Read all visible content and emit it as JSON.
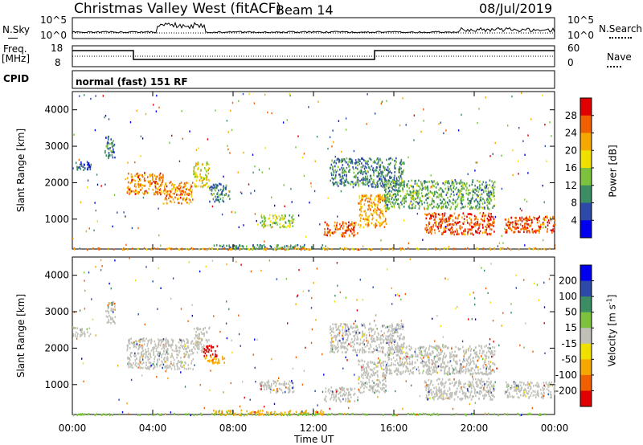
{
  "header": {
    "radar": "Christmas Valley West (fitACF)",
    "beam": "Beam 14",
    "date": "08/Jul/2019"
  },
  "top_panel": {
    "nsky_label": "N.Sky",
    "nsearch_label": "N.Search",
    "left_ticks": [
      "10^5",
      "10^0"
    ],
    "right_ticks": [
      "10^5",
      "10^0"
    ],
    "freq_label": "Freq.",
    "freq_unit": "[MHz]",
    "freq_ticks": [
      "18",
      "8"
    ],
    "nave_label": "Nave",
    "nave_ticks": [
      "60",
      "0"
    ],
    "cpid_label": "CPID",
    "cpid_text": "normal (fast) 151 RF"
  },
  "colors": {
    "power_scale": [
      "#0000ee",
      "#2d4aa8",
      "#3c8c64",
      "#7cc23c",
      "#f0e000",
      "#f5a800",
      "#f06000",
      "#e00000"
    ],
    "velocity_scale": [
      "#e00000",
      "#f06000",
      "#f5a800",
      "#f0e000",
      "#c0c0b8",
      "#7cc23c",
      "#3c8c64",
      "#2d4aa8",
      "#0000ee"
    ]
  },
  "chart_data": [
    {
      "type": "heatmap",
      "quantity": "Power",
      "ylabel": "Slant Range [km]",
      "xlabel": "",
      "x_ticks": [
        "00:00",
        "04:00",
        "08:00",
        "12:00",
        "16:00",
        "20:00",
        "00:00"
      ],
      "y_ticks": [
        1000,
        2000,
        3000,
        4000
      ],
      "ylim": [
        180,
        4500
      ],
      "xlim_hours": [
        0,
        24
      ],
      "colorbar_label": "Power [dB]",
      "colorbar_ticks": [
        "28",
        "24",
        "20",
        "16",
        "12",
        "8",
        "4"
      ],
      "colorbar_range": [
        0,
        30
      ],
      "scatter_regions": [
        {
          "t0": 0.0,
          "t1": 0.9,
          "r0": 2350,
          "r1": 2600,
          "level": 7
        },
        {
          "t0": 1.6,
          "t1": 2.1,
          "r0": 2700,
          "r1": 3300,
          "level": 8
        },
        {
          "t0": 2.7,
          "t1": 4.5,
          "r0": 1700,
          "r1": 2300,
          "level": 24
        },
        {
          "t0": 4.5,
          "t1": 6.0,
          "r0": 1450,
          "r1": 2050,
          "level": 24
        },
        {
          "t0": 6.0,
          "t1": 6.8,
          "r0": 1900,
          "r1": 2600,
          "level": 18
        },
        {
          "t0": 6.8,
          "t1": 7.8,
          "r0": 1500,
          "r1": 2000,
          "level": 9
        },
        {
          "t0": 9.3,
          "t1": 11.0,
          "r0": 800,
          "r1": 1150,
          "level": 16
        },
        {
          "t0": 12.5,
          "t1": 14.2,
          "r0": 550,
          "r1": 950,
          "level": 26
        },
        {
          "t0": 14.2,
          "t1": 15.6,
          "r0": 800,
          "r1": 1700,
          "level": 22
        },
        {
          "t0": 12.8,
          "t1": 16.5,
          "r0": 1900,
          "r1": 2700,
          "level": 9
        },
        {
          "t0": 15.5,
          "t1": 21.0,
          "r0": 1300,
          "r1": 2100,
          "level": 12
        },
        {
          "t0": 17.5,
          "t1": 21.0,
          "r0": 600,
          "r1": 1200,
          "level": 27
        },
        {
          "t0": 21.5,
          "t1": 24.0,
          "r0": 650,
          "r1": 1100,
          "level": 27
        },
        {
          "t0": 7.0,
          "t1": 12.5,
          "r0": 190,
          "r1": 320,
          "level": 10
        },
        {
          "t0": 0.0,
          "t1": 24.0,
          "r0": 185,
          "r1": 230,
          "level": 22
        }
      ]
    },
    {
      "type": "heatmap",
      "quantity": "Velocity",
      "ylabel": "Slant Range [km]",
      "xlabel": "Time UT",
      "x_ticks": [
        "00:00",
        "04:00",
        "08:00",
        "12:00",
        "16:00",
        "20:00",
        "00:00"
      ],
      "y_ticks": [
        1000,
        2000,
        3000,
        4000
      ],
      "ylim": [
        180,
        4500
      ],
      "xlim_hours": [
        0,
        24
      ],
      "colorbar_label": "Velocity [m s",
      "colorbar_exp": "-1",
      "colorbar_ticks": [
        "200",
        "100",
        "50",
        "15",
        "-15",
        "-50",
        "-100",
        "-200"
      ],
      "colorbar_range": [
        -250,
        250
      ],
      "scatter_regions": [
        {
          "t0": 0.0,
          "t1": 0.9,
          "r0": 2350,
          "r1": 2600,
          "level": 0
        },
        {
          "t0": 1.6,
          "t1": 2.1,
          "r0": 2700,
          "r1": 3300,
          "level": 0
        },
        {
          "t0": 2.7,
          "t1": 6.0,
          "r0": 1450,
          "r1": 2300,
          "level": 0
        },
        {
          "t0": 6.0,
          "t1": 6.8,
          "r0": 1900,
          "r1": 2600,
          "level": 0
        },
        {
          "t0": 6.5,
          "t1": 7.2,
          "r0": 1800,
          "r1": 2100,
          "level": -220
        },
        {
          "t0": 6.5,
          "t1": 7.6,
          "r0": 1600,
          "r1": 1800,
          "level": -60
        },
        {
          "t0": 9.3,
          "t1": 11.0,
          "r0": 800,
          "r1": 1150,
          "level": 0
        },
        {
          "t0": 12.5,
          "t1": 14.2,
          "r0": 550,
          "r1": 950,
          "level": 0
        },
        {
          "t0": 14.2,
          "t1": 15.6,
          "r0": 800,
          "r1": 1700,
          "level": 0
        },
        {
          "t0": 12.8,
          "t1": 16.5,
          "r0": 1900,
          "r1": 2700,
          "level": 0
        },
        {
          "t0": 15.5,
          "t1": 21.0,
          "r0": 1300,
          "r1": 2100,
          "level": 0
        },
        {
          "t0": 17.5,
          "t1": 21.0,
          "r0": 600,
          "r1": 1200,
          "level": 0
        },
        {
          "t0": 21.5,
          "t1": 24.0,
          "r0": 650,
          "r1": 1100,
          "level": 0
        },
        {
          "t0": 7.0,
          "t1": 12.5,
          "r0": 190,
          "r1": 320,
          "level": -60
        },
        {
          "t0": 0.0,
          "t1": 24.0,
          "r0": 185,
          "r1": 230,
          "level": 30
        }
      ]
    }
  ]
}
